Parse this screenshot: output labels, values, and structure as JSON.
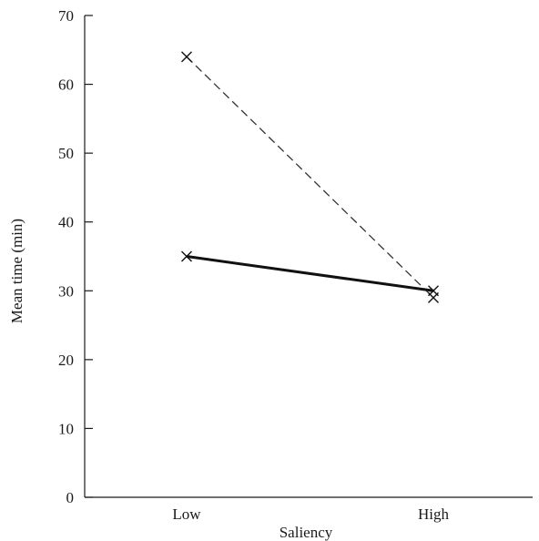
{
  "chart_data": {
    "type": "line",
    "categories": [
      "Low",
      "High"
    ],
    "series": [
      {
        "values": [
          64,
          29
        ],
        "style": "dashed",
        "marker": "x",
        "color": "#333333"
      },
      {
        "values": [
          35,
          30
        ],
        "style": "solid",
        "marker": "x",
        "color": "#111111"
      }
    ],
    "title": "",
    "xlabel": "Saliency",
    "ylabel": "Mean time (min)",
    "ylim": [
      0,
      70
    ],
    "yticks": [
      0,
      10,
      20,
      30,
      40,
      50,
      60,
      70
    ],
    "grid": false,
    "legend": false
  }
}
